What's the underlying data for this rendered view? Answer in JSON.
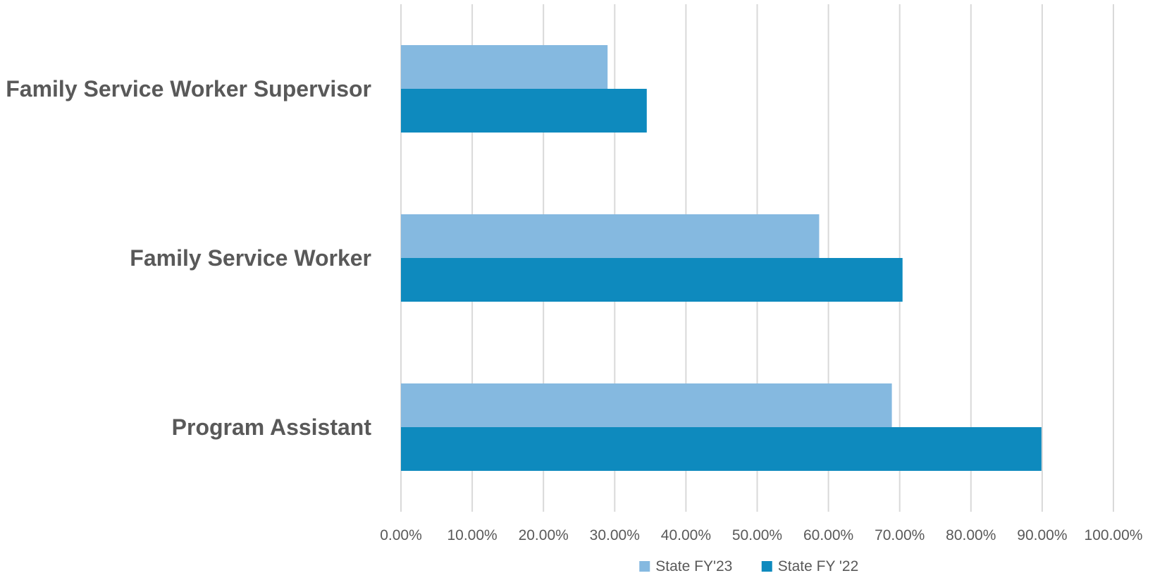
{
  "chart_data": {
    "type": "bar",
    "orientation": "horizontal",
    "categories": [
      "Family Service Worker Supervisor",
      "Family Service Worker",
      "Program Assistant"
    ],
    "series": [
      {
        "name": "State FY'23",
        "values": [
          29.0,
          58.7,
          68.9
        ],
        "color": "#85B9E0"
      },
      {
        "name": "State FY '22",
        "values": [
          34.5,
          70.4,
          89.9
        ],
        "color": "#0E8ABE"
      }
    ],
    "xlim": [
      0,
      100
    ],
    "ticks": [
      "0.00%",
      "10.00%",
      "20.00%",
      "30.00%",
      "40.00%",
      "50.00%",
      "60.00%",
      "70.00%",
      "80.00%",
      "90.00%",
      "100.00%"
    ],
    "grid": true,
    "legend": "bottom",
    "title": "",
    "xlabel": "",
    "ylabel": ""
  }
}
